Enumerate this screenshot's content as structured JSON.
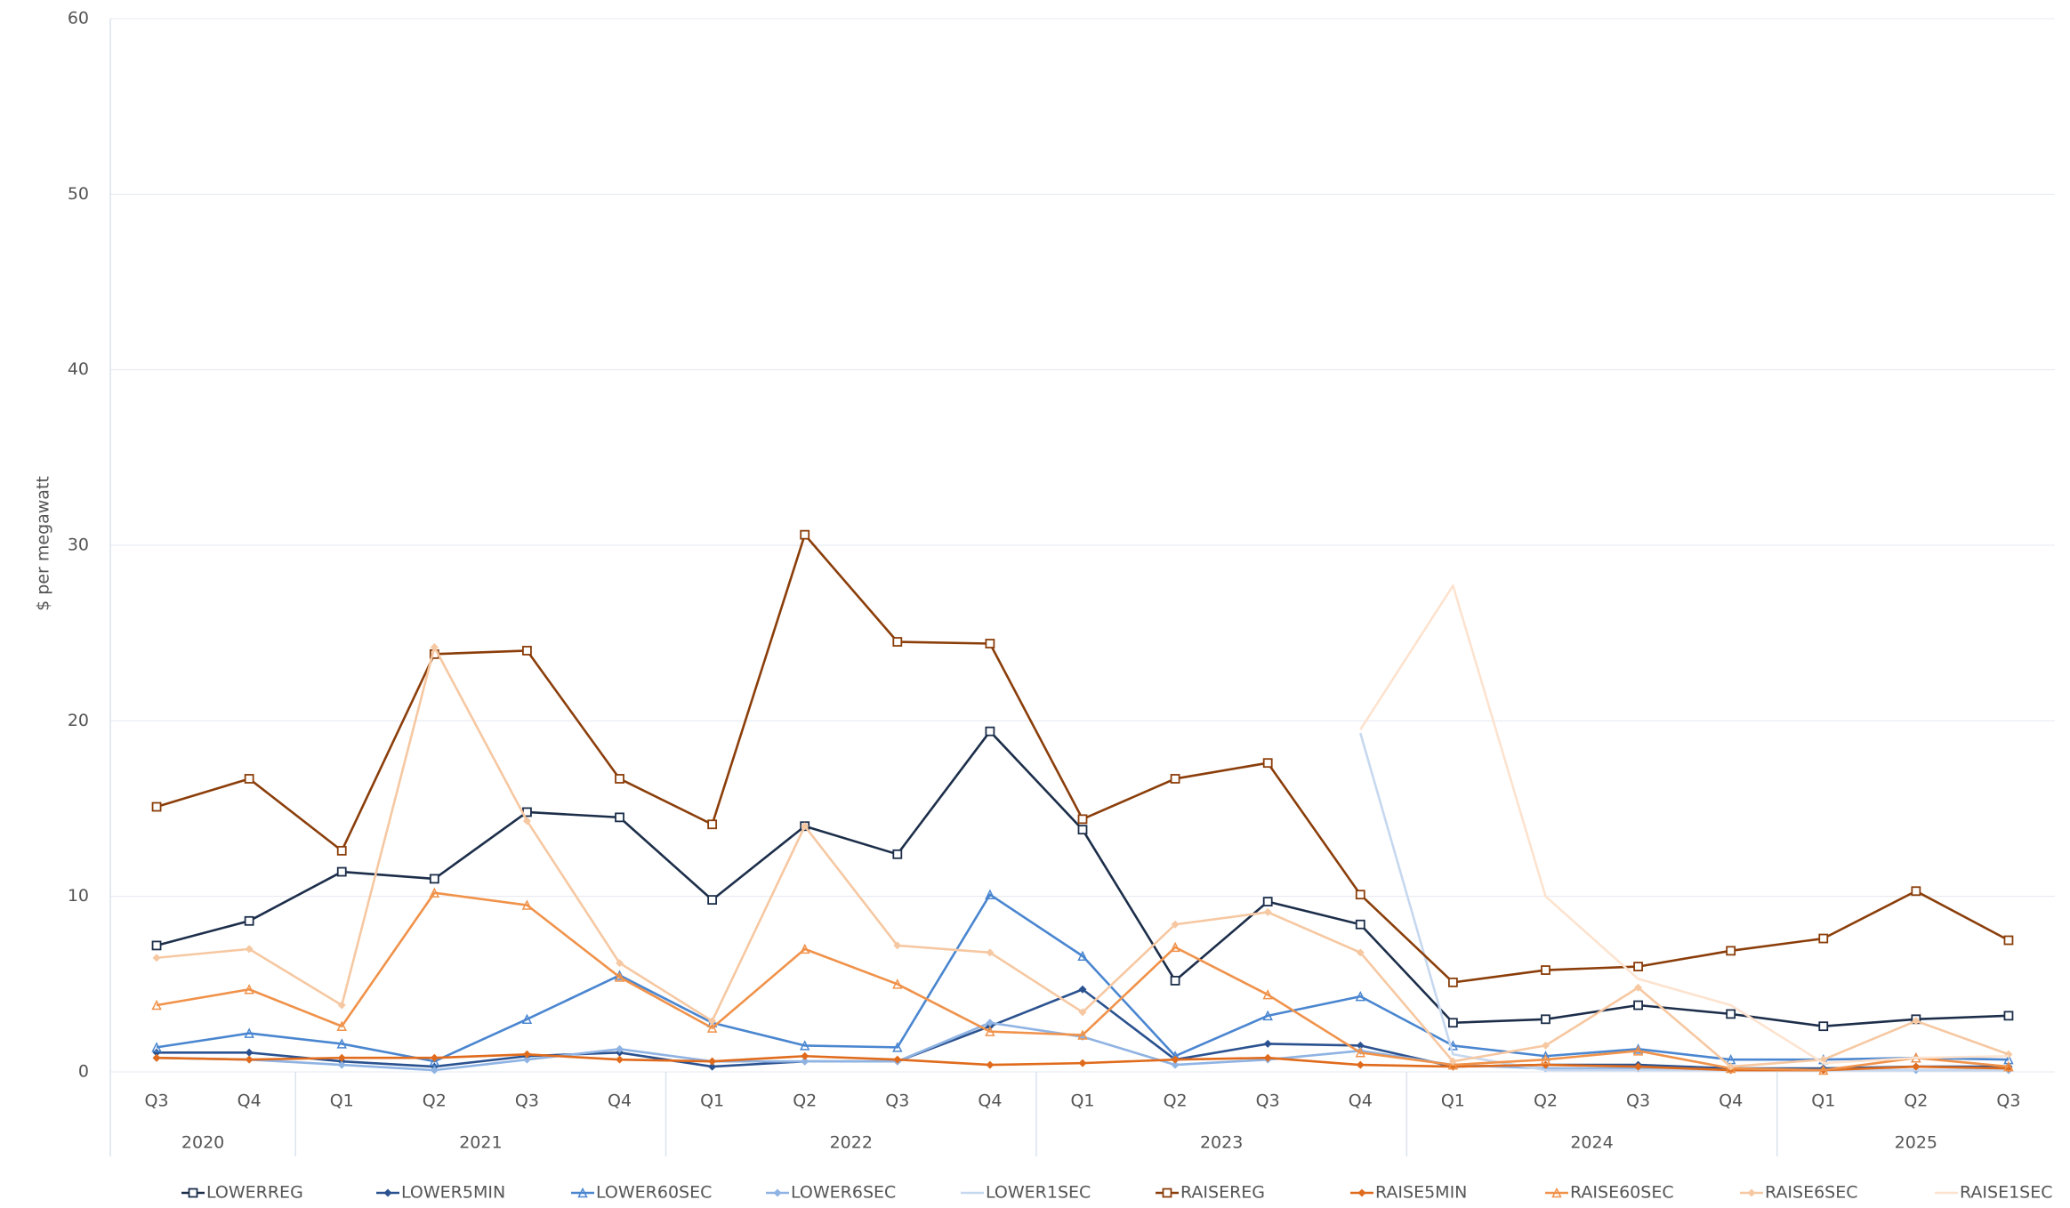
{
  "chart_data": {
    "type": "line",
    "y_label": "$ per megawatt",
    "categories": [
      "Q3",
      "Q4",
      "Q1",
      "Q2",
      "Q3",
      "Q4",
      "Q1",
      "Q2",
      "Q3",
      "Q4",
      "Q1",
      "Q2",
      "Q3",
      "Q4",
      "Q1",
      "Q2",
      "Q3",
      "Q4",
      "Q1",
      "Q2",
      "Q3"
    ],
    "x_groups": [
      {
        "label": "2020",
        "count": 2
      },
      {
        "label": "2021",
        "count": 4
      },
      {
        "label": "2022",
        "count": 4
      },
      {
        "label": "2023",
        "count": 4
      },
      {
        "label": "2024",
        "count": 4
      },
      {
        "label": "2025",
        "count": 3
      }
    ],
    "ylim": [
      0,
      60
    ],
    "yticks": [
      0,
      10,
      20,
      30,
      40,
      50,
      60
    ],
    "grid": true,
    "legend": "bottom",
    "series": [
      {
        "name": "LOWERREG",
        "color": "#1c2e4a",
        "marker": "square",
        "values": [
          7.2,
          8.6,
          11.4,
          11.0,
          14.8,
          14.5,
          9.8,
          14.0,
          12.4,
          19.4,
          13.8,
          5.2,
          9.7,
          8.4,
          2.8,
          3.0,
          3.8,
          3.3,
          2.6,
          3.0,
          3.2
        ]
      },
      {
        "name": "LOWER5MIN",
        "color": "#2b5290",
        "marker": "diamond",
        "values": [
          1.1,
          1.1,
          0.6,
          0.3,
          0.9,
          1.1,
          0.3,
          0.6,
          0.6,
          2.6,
          4.7,
          0.7,
          1.6,
          1.5,
          0.3,
          0.4,
          0.4,
          0.2,
          0.2,
          0.3,
          0.3
        ]
      },
      {
        "name": "LOWER60SEC",
        "color": "#4a86d0",
        "marker": "triangle",
        "values": [
          1.4,
          2.2,
          1.6,
          0.6,
          3.0,
          5.5,
          2.8,
          1.5,
          1.4,
          10.1,
          6.6,
          0.9,
          3.2,
          4.3,
          1.5,
          0.9,
          1.3,
          0.7,
          0.7,
          0.8,
          0.7
        ]
      },
      {
        "name": "LOWER6SEC",
        "color": "#8fb3e3",
        "marker": "diamond",
        "values": [
          0.8,
          0.7,
          0.4,
          0.1,
          0.7,
          1.3,
          0.6,
          0.6,
          0.6,
          2.8,
          2.0,
          0.4,
          0.7,
          1.2,
          0.4,
          0.2,
          0.2,
          0.1,
          0.1,
          0.1,
          0.1
        ]
      },
      {
        "name": "LOWER1SEC",
        "color": "#c6d8ef",
        "marker": "none",
        "values": [
          null,
          null,
          null,
          null,
          null,
          null,
          null,
          null,
          null,
          null,
          null,
          null,
          null,
          19.3,
          1.0,
          0.1,
          0.1,
          0.1,
          0.1,
          0.1,
          0.1
        ]
      },
      {
        "name": "RAISEREG",
        "color": "#8b3e0a",
        "marker": "square",
        "values": [
          15.1,
          16.7,
          12.6,
          23.8,
          24.0,
          16.7,
          14.1,
          30.6,
          24.5,
          24.4,
          14.4,
          16.7,
          17.6,
          10.1,
          5.1,
          5.8,
          6.0,
          6.9,
          7.6,
          10.3,
          7.5
        ]
      },
      {
        "name": "RAISE5MIN",
        "color": "#e06b1c",
        "marker": "diamond",
        "values": [
          0.8,
          0.7,
          0.8,
          0.8,
          1.0,
          0.7,
          0.6,
          0.9,
          0.7,
          0.4,
          0.5,
          0.7,
          0.8,
          0.4,
          0.3,
          0.4,
          0.3,
          0.1,
          0.1,
          0.3,
          0.2
        ]
      },
      {
        "name": "RAISE60SEC",
        "color": "#f0924a",
        "marker": "triangle",
        "values": [
          3.8,
          4.7,
          2.6,
          10.2,
          9.5,
          5.4,
          2.5,
          7.0,
          5.0,
          2.3,
          2.1,
          7.1,
          4.4,
          1.1,
          0.4,
          0.7,
          1.2,
          0.2,
          0.1,
          0.8,
          0.3
        ]
      },
      {
        "name": "RAISE6SEC",
        "color": "#f6c8a2",
        "marker": "diamond",
        "values": [
          6.5,
          7.0,
          3.8,
          24.2,
          14.3,
          6.2,
          2.9,
          14.0,
          7.2,
          6.8,
          3.4,
          8.4,
          9.1,
          6.8,
          0.6,
          1.5,
          4.8,
          0.3,
          0.7,
          2.9,
          1.0
        ]
      },
      {
        "name": "RAISE1SEC",
        "color": "#fde3cf",
        "marker": "none",
        "values": [
          null,
          null,
          null,
          null,
          null,
          null,
          null,
          null,
          null,
          null,
          null,
          null,
          null,
          19.5,
          27.7,
          10.0,
          5.3,
          3.8,
          0.5,
          0.8,
          0.9
        ]
      }
    ]
  }
}
